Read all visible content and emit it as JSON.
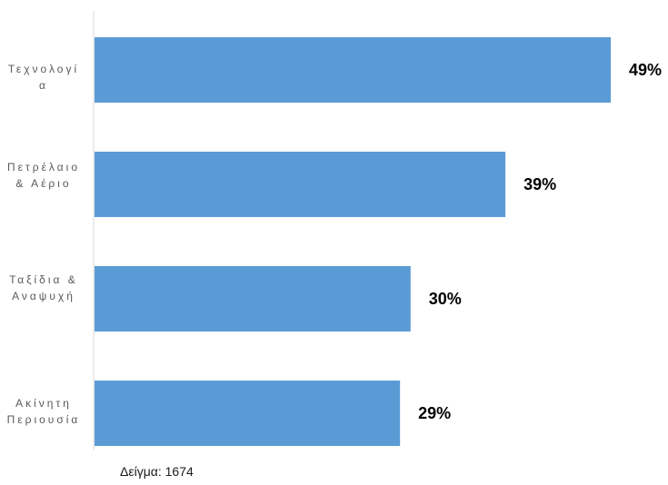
{
  "chart_data": {
    "type": "bar",
    "orientation": "horizontal",
    "categories": [
      "Τεχνολογία",
      "Πετρέλαιο & Αέριο",
      "Ταξίδια & Αναψυχή",
      "Ακίνητη Περιουσία"
    ],
    "values": [
      49,
      39,
      30,
      29
    ],
    "value_labels": [
      "49%",
      "39%",
      "30%",
      "29%"
    ],
    "xlim": [
      0,
      49
    ],
    "bar_color": "#5b9bd5",
    "grid": false,
    "legend": "none",
    "note": "Δείγμα: 1674"
  }
}
